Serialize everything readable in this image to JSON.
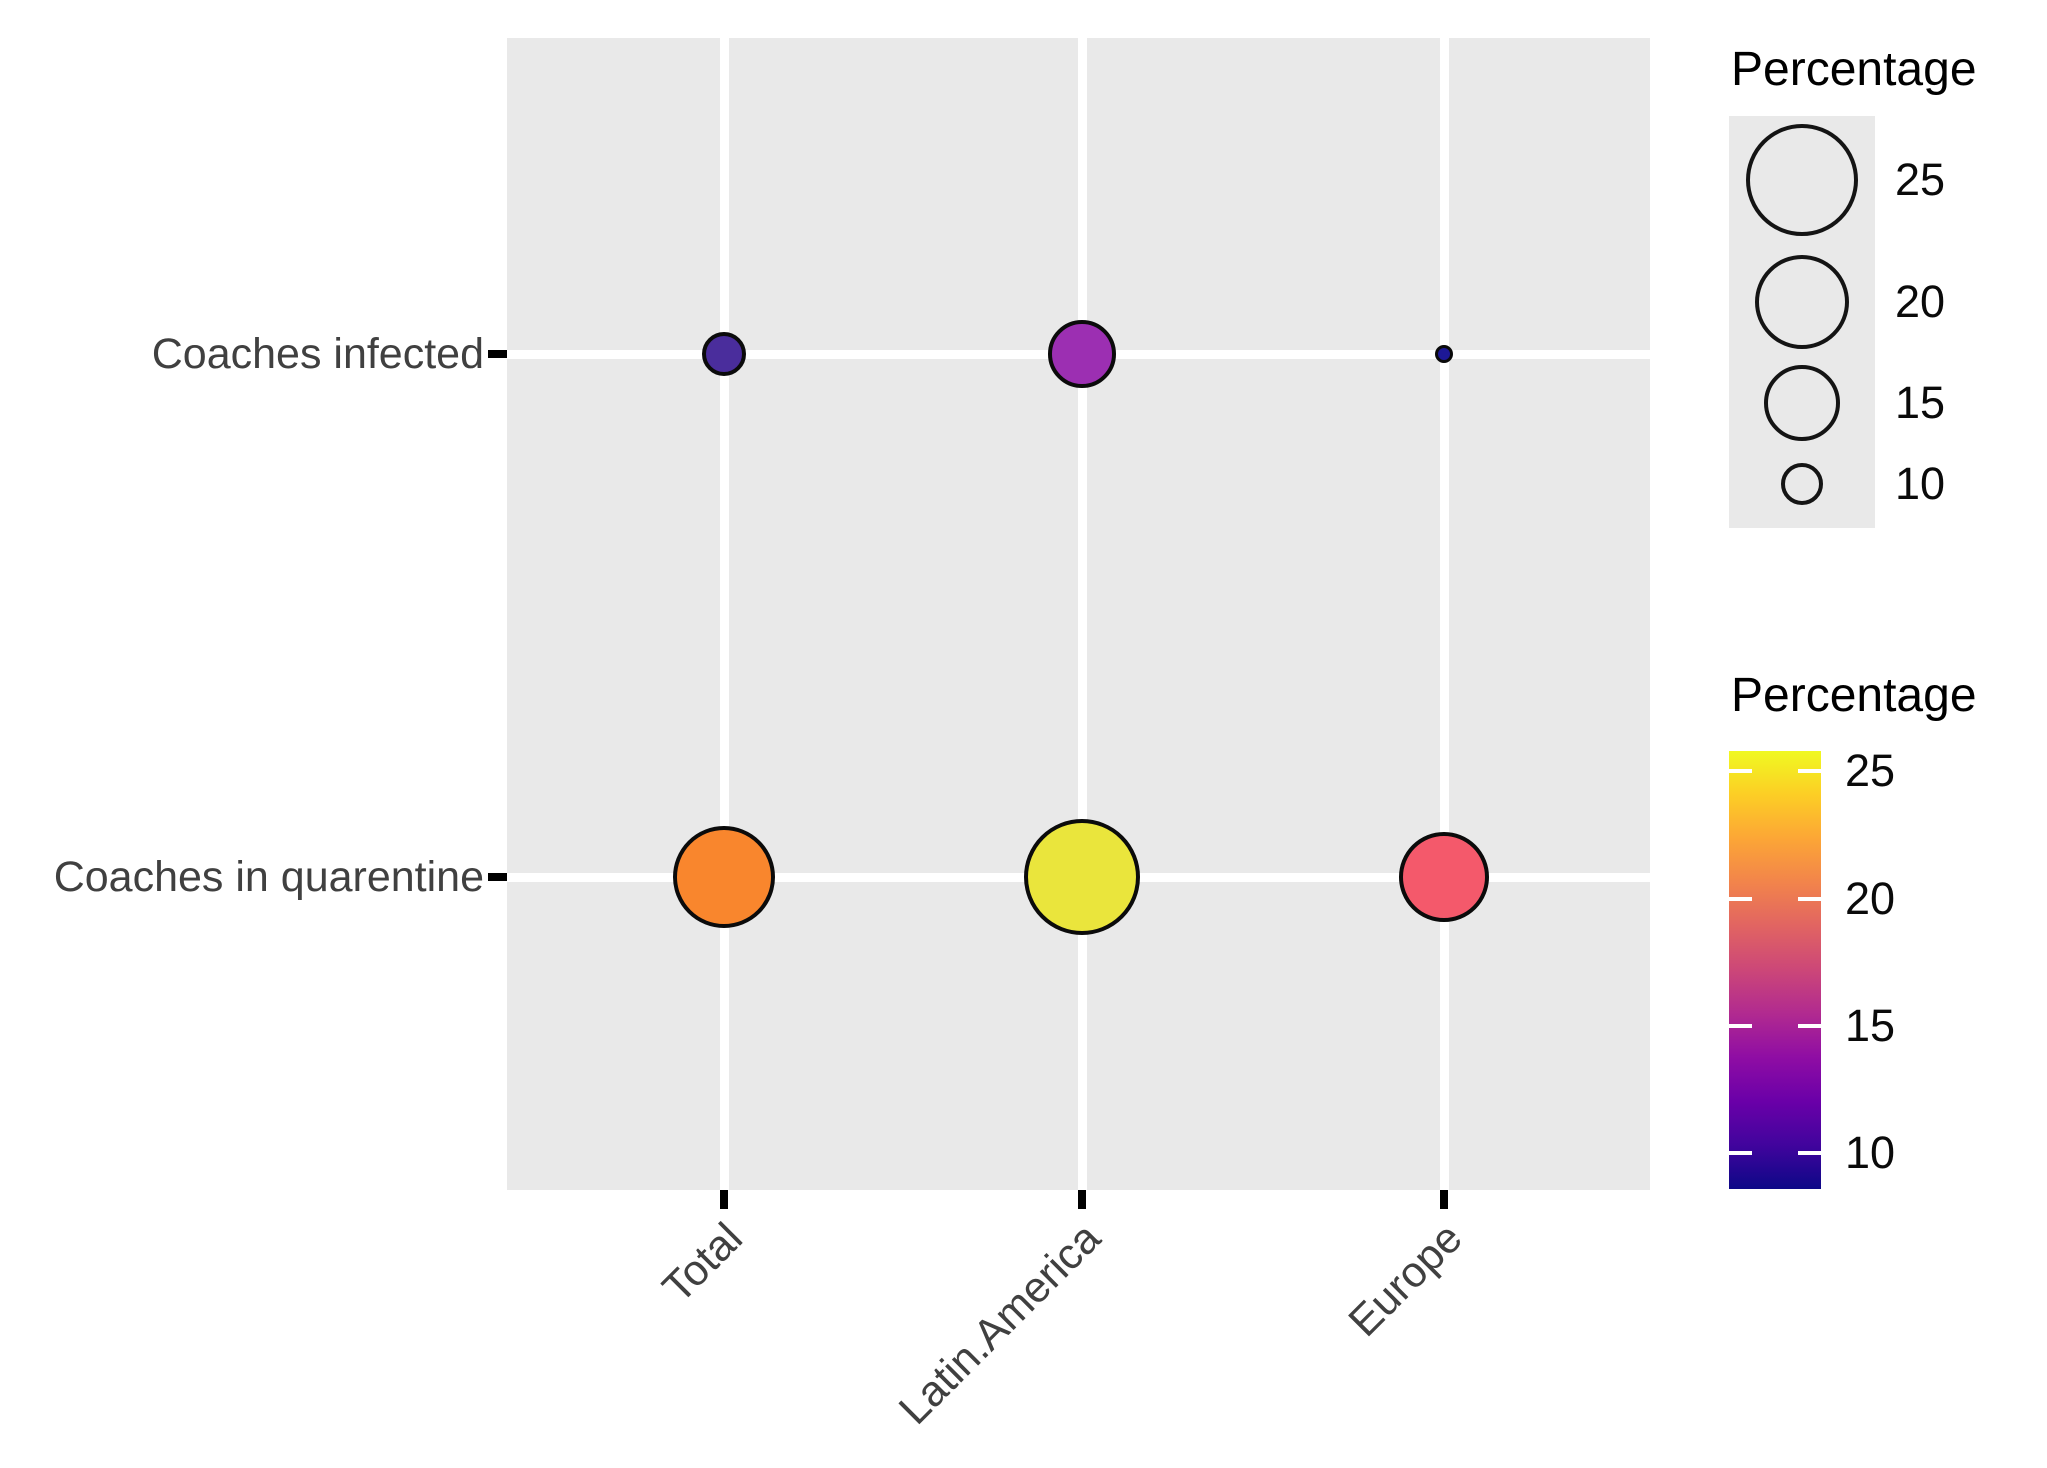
{
  "figure": {
    "background": "#FFFFFF",
    "panel_background": "#E9E9E9",
    "gridline_color": "#FFFFFF",
    "axis_text_color": "#404040",
    "legend_text_color": "#0A0A0A",
    "bubble_stroke_color": "#0B0B0B"
  },
  "chart_data": {
    "type": "scatter",
    "subtype": "balloon-plot",
    "x_categories": [
      "Total",
      "Latin.America",
      "Europe"
    ],
    "y_categories": [
      "Coaches infected",
      "Coaches in quarentine"
    ],
    "grid": "on",
    "legend_position": "right",
    "points": [
      {
        "x": "Total",
        "y": "Coaches infected",
        "value": 11,
        "color": "#4A2D9C",
        "radius_px": 22
      },
      {
        "x": "Latin.America",
        "y": "Coaches infected",
        "value": 14,
        "color": "#9C2FB2",
        "radius_px": 34
      },
      {
        "x": "Europe",
        "y": "Coaches infected",
        "value": 8.6,
        "color": "#1D1896",
        "radius_px": 9
      },
      {
        "x": "Total",
        "y": "Coaches in quarentine",
        "value": 21.5,
        "color": "#F9862D",
        "radius_px": 51
      },
      {
        "x": "Latin.America",
        "y": "Coaches in quarentine",
        "value": 25.8,
        "color": "#EAE53C",
        "radius_px": 58
      },
      {
        "x": "Europe",
        "y": "Coaches in quarentine",
        "value": 18.5,
        "color": "#F4596B",
        "radius_px": 45
      }
    ],
    "size_legend": {
      "title": "Percentage",
      "entries": [
        {
          "label": "25",
          "radius_px": 56
        },
        {
          "label": "20",
          "radius_px": 47
        },
        {
          "label": "15",
          "radius_px": 38
        },
        {
          "label": "10",
          "radius_px": 21
        }
      ]
    },
    "color_legend": {
      "title": "Percentage",
      "domain": [
        8.6,
        25.8
      ],
      "tick_values": [
        25,
        20,
        15,
        10
      ],
      "tick_labels": [
        "25",
        "20",
        "15",
        "10"
      ],
      "palette": "plasma",
      "palette_stops": [
        "#0D0887",
        "#41049D",
        "#6A00A8",
        "#8F0DA4",
        "#B12A90",
        "#CC4778",
        "#E16462",
        "#F2844B",
        "#FCA636",
        "#FCCE25",
        "#F0F921"
      ]
    }
  }
}
